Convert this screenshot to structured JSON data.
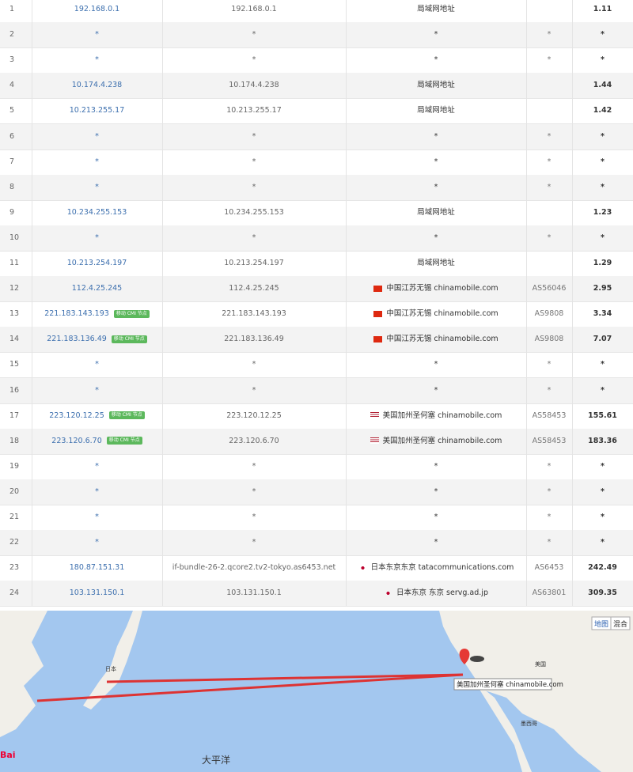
{
  "table": {
    "rows": [
      {
        "hop": "1",
        "ip": "192.168.0.1",
        "host": "192.168.0.1",
        "location": "局域网地址",
        "time": "1.11"
      },
      {
        "hop": "2",
        "ip": "*",
        "host": "*",
        "location": "*",
        "asn": "*",
        "time": "*"
      },
      {
        "hop": "3",
        "ip": "*",
        "host": "*",
        "location": "*",
        "asn": "*",
        "time": "*"
      },
      {
        "hop": "4",
        "ip": "10.174.4.238",
        "host": "10.174.4.238",
        "location": "局域网地址",
        "time": "1.44"
      },
      {
        "hop": "5",
        "ip": "10.213.255.17",
        "host": "10.213.255.17",
        "location": "局域网地址",
        "time": "1.42"
      },
      {
        "hop": "6",
        "ip": "*",
        "host": "*",
        "location": "*",
        "asn": "*",
        "time": "*"
      },
      {
        "hop": "7",
        "ip": "*",
        "host": "*",
        "location": "*",
        "asn": "*",
        "time": "*"
      },
      {
        "hop": "8",
        "ip": "*",
        "host": "*",
        "location": "*",
        "asn": "*",
        "time": "*"
      },
      {
        "hop": "9",
        "ip": "10.234.255.153",
        "host": "10.234.255.153",
        "location": "局域网地址",
        "time": "1.23"
      },
      {
        "hop": "10",
        "ip": "*",
        "host": "*",
        "location": "*",
        "asn": "*",
        "time": "*"
      },
      {
        "hop": "11",
        "ip": "10.213.254.197",
        "host": "10.213.254.197",
        "location": "局域网地址",
        "time": "1.29"
      },
      {
        "hop": "12",
        "ip": "112.4.25.245",
        "host": "112.4.25.245",
        "flag": "cn",
        "location": "中国江苏无锡 chinamobile.com",
        "asn": "AS56046",
        "time": "2.95"
      },
      {
        "hop": "13",
        "ip": "221.183.143.193",
        "badge": "移动 CMI 节点",
        "host": "221.183.143.193",
        "flag": "cn",
        "location": "中国江苏无锡 chinamobile.com",
        "asn": "AS9808",
        "time": "3.34"
      },
      {
        "hop": "14",
        "ip": "221.183.136.49",
        "badge": "移动 CMI 节点",
        "host": "221.183.136.49",
        "flag": "cn",
        "location": "中国江苏无锡 chinamobile.com",
        "asn": "AS9808",
        "time": "7.07"
      },
      {
        "hop": "15",
        "ip": "*",
        "host": "*",
        "location": "*",
        "asn": "*",
        "time": "*"
      },
      {
        "hop": "16",
        "ip": "*",
        "host": "*",
        "location": "*",
        "asn": "*",
        "time": "*"
      },
      {
        "hop": "17",
        "ip": "223.120.12.25",
        "badge": "移动 CMI 节点",
        "host": "223.120.12.25",
        "flag": "us",
        "location": "美国加州圣何塞 chinamobile.com",
        "asn": "AS58453",
        "time": "155.61"
      },
      {
        "hop": "18",
        "ip": "223.120.6.70",
        "badge": "移动 CMI 节点",
        "host": "223.120.6.70",
        "flag": "us",
        "location": "美国加州圣何塞 chinamobile.com",
        "asn": "AS58453",
        "time": "183.36"
      },
      {
        "hop": "19",
        "ip": "*",
        "host": "*",
        "location": "*",
        "asn": "*",
        "time": "*"
      },
      {
        "hop": "20",
        "ip": "*",
        "host": "*",
        "location": "*",
        "asn": "*",
        "time": "*"
      },
      {
        "hop": "21",
        "ip": "*",
        "host": "*",
        "location": "*",
        "asn": "*",
        "time": "*"
      },
      {
        "hop": "22",
        "ip": "*",
        "host": "*",
        "location": "*",
        "asn": "*",
        "time": "*"
      },
      {
        "hop": "23",
        "ip": "180.87.151.31",
        "host": "if-bundle-26-2.qcore2.tv2-tokyo.as6453.net",
        "flag": "jp",
        "location": "日本东京东京 tatacommunications.com",
        "asn": "AS6453",
        "time": "242.49"
      },
      {
        "hop": "24",
        "ip": "103.131.150.1",
        "host": "103.131.150.1",
        "flag": "jp",
        "location": "日本东京 东京 servg.ad.jp",
        "asn": "AS63801",
        "time": "309.35"
      }
    ]
  },
  "map": {
    "toggle": [
      "地图",
      "混合"
    ],
    "tooltip": "美国加州圣何塞 chinamobile.com",
    "labels": {
      "japan": "日本",
      "usa": "美国",
      "mexico": "墨西哥",
      "ocean": "大平洋"
    },
    "logo": "Bai"
  }
}
